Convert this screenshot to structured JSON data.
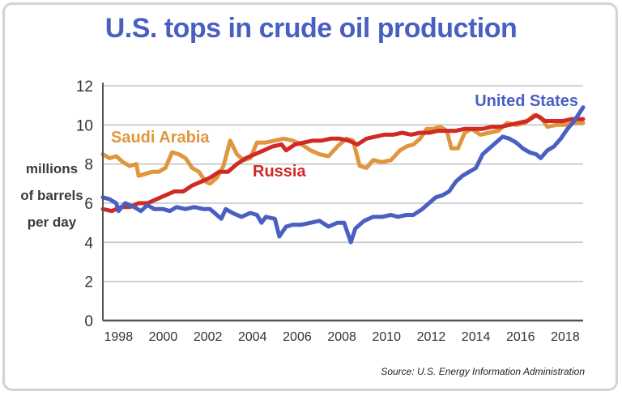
{
  "chart_data": {
    "type": "line",
    "title": "U.S. tops in crude oil production",
    "ylabel_lines": [
      "millions",
      "of barrels",
      "per day"
    ],
    "xlabel": "",
    "source": "Source: U.S. Energy Information Administration",
    "ylim": [
      0,
      12
    ],
    "xlim": [
      1997.3,
      2018.8
    ],
    "y_ticks": [
      0,
      2,
      4,
      6,
      8,
      10,
      12
    ],
    "x_ticks": [
      1998,
      2000,
      2002,
      2004,
      2006,
      2008,
      2010,
      2012,
      2014,
      2016,
      2018
    ],
    "grid": true,
    "series": [
      {
        "name": "Saudi Arabia",
        "color": "#e0963f",
        "points": [
          [
            1997.3,
            8.5
          ],
          [
            1997.6,
            8.3
          ],
          [
            1997.9,
            8.4
          ],
          [
            1998.2,
            8.1
          ],
          [
            1998.5,
            7.9
          ],
          [
            1998.8,
            8.0
          ],
          [
            1998.9,
            7.4
          ],
          [
            1999.2,
            7.5
          ],
          [
            1999.5,
            7.6
          ],
          [
            1999.8,
            7.6
          ],
          [
            2000.1,
            7.8
          ],
          [
            2000.4,
            8.6
          ],
          [
            2000.7,
            8.5
          ],
          [
            2001.0,
            8.3
          ],
          [
            2001.3,
            7.8
          ],
          [
            2001.6,
            7.6
          ],
          [
            2001.9,
            7.1
          ],
          [
            2002.1,
            7.0
          ],
          [
            2002.4,
            7.3
          ],
          [
            2002.7,
            7.9
          ],
          [
            2003.0,
            9.2
          ],
          [
            2003.3,
            8.5
          ],
          [
            2003.6,
            8.2
          ],
          [
            2003.9,
            8.3
          ],
          [
            2004.2,
            9.1
          ],
          [
            2004.6,
            9.1
          ],
          [
            2005.0,
            9.2
          ],
          [
            2005.4,
            9.3
          ],
          [
            2005.8,
            9.2
          ],
          [
            2006.2,
            9.0
          ],
          [
            2006.6,
            8.7
          ],
          [
            2007.0,
            8.5
          ],
          [
            2007.4,
            8.4
          ],
          [
            2007.8,
            8.9
          ],
          [
            2008.2,
            9.3
          ],
          [
            2008.5,
            9.2
          ],
          [
            2008.8,
            7.9
          ],
          [
            2009.1,
            7.8
          ],
          [
            2009.4,
            8.2
          ],
          [
            2009.8,
            8.1
          ],
          [
            2010.2,
            8.2
          ],
          [
            2010.6,
            8.7
          ],
          [
            2010.9,
            8.9
          ],
          [
            2011.2,
            9.0
          ],
          [
            2011.5,
            9.3
          ],
          [
            2011.8,
            9.8
          ],
          [
            2012.1,
            9.8
          ],
          [
            2012.4,
            9.9
          ],
          [
            2012.7,
            9.7
          ],
          [
            2012.9,
            8.8
          ],
          [
            2013.2,
            8.8
          ],
          [
            2013.5,
            9.6
          ],
          [
            2013.8,
            9.8
          ],
          [
            2014.2,
            9.5
          ],
          [
            2014.6,
            9.6
          ],
          [
            2015.0,
            9.7
          ],
          [
            2015.4,
            10.1
          ],
          [
            2015.8,
            10.0
          ],
          [
            2016.2,
            10.1
          ],
          [
            2016.6,
            10.5
          ],
          [
            2016.9,
            10.4
          ],
          [
            2017.2,
            9.9
          ],
          [
            2017.6,
            10.0
          ],
          [
            2018.0,
            10.0
          ],
          [
            2018.4,
            10.1
          ],
          [
            2018.8,
            10.1
          ]
        ]
      },
      {
        "name": "Russia",
        "color": "#cf2a25",
        "points": [
          [
            1997.3,
            5.7
          ],
          [
            1997.7,
            5.6
          ],
          [
            1998.1,
            5.8
          ],
          [
            1998.5,
            5.8
          ],
          [
            1998.9,
            6.0
          ],
          [
            1999.3,
            6.0
          ],
          [
            1999.7,
            6.2
          ],
          [
            2000.1,
            6.4
          ],
          [
            2000.5,
            6.6
          ],
          [
            2000.9,
            6.6
          ],
          [
            2001.3,
            6.9
          ],
          [
            2001.7,
            7.1
          ],
          [
            2002.1,
            7.3
          ],
          [
            2002.5,
            7.6
          ],
          [
            2002.9,
            7.6
          ],
          [
            2003.3,
            8.0
          ],
          [
            2003.7,
            8.3
          ],
          [
            2004.1,
            8.5
          ],
          [
            2004.5,
            8.7
          ],
          [
            2004.9,
            8.9
          ],
          [
            2005.3,
            9.0
          ],
          [
            2005.5,
            8.7
          ],
          [
            2005.9,
            9.0
          ],
          [
            2006.3,
            9.1
          ],
          [
            2006.7,
            9.2
          ],
          [
            2007.1,
            9.2
          ],
          [
            2007.5,
            9.3
          ],
          [
            2007.9,
            9.3
          ],
          [
            2008.3,
            9.2
          ],
          [
            2008.7,
            9.0
          ],
          [
            2009.1,
            9.3
          ],
          [
            2009.5,
            9.4
          ],
          [
            2009.9,
            9.5
          ],
          [
            2010.3,
            9.5
          ],
          [
            2010.7,
            9.6
          ],
          [
            2011.1,
            9.5
          ],
          [
            2011.5,
            9.6
          ],
          [
            2011.9,
            9.6
          ],
          [
            2012.3,
            9.7
          ],
          [
            2012.7,
            9.7
          ],
          [
            2013.1,
            9.7
          ],
          [
            2013.5,
            9.8
          ],
          [
            2013.9,
            9.8
          ],
          [
            2014.3,
            9.8
          ],
          [
            2014.7,
            9.9
          ],
          [
            2015.1,
            9.9
          ],
          [
            2015.5,
            10.0
          ],
          [
            2015.9,
            10.1
          ],
          [
            2016.3,
            10.2
          ],
          [
            2016.7,
            10.5
          ],
          [
            2017.1,
            10.2
          ],
          [
            2017.5,
            10.2
          ],
          [
            2017.9,
            10.2
          ],
          [
            2018.3,
            10.3
          ],
          [
            2018.8,
            10.3
          ]
        ]
      },
      {
        "name": "United States",
        "color": "#4a5fc2",
        "points": [
          [
            1997.3,
            6.3
          ],
          [
            1997.6,
            6.2
          ],
          [
            1997.9,
            6.0
          ],
          [
            1998.0,
            5.6
          ],
          [
            1998.3,
            6.0
          ],
          [
            1998.7,
            5.8
          ],
          [
            1999.0,
            5.6
          ],
          [
            1999.3,
            5.9
          ],
          [
            1999.6,
            5.7
          ],
          [
            2000.0,
            5.7
          ],
          [
            2000.3,
            5.6
          ],
          [
            2000.6,
            5.8
          ],
          [
            2001.0,
            5.7
          ],
          [
            2001.4,
            5.8
          ],
          [
            2001.8,
            5.7
          ],
          [
            2002.1,
            5.7
          ],
          [
            2002.4,
            5.4
          ],
          [
            2002.6,
            5.2
          ],
          [
            2002.8,
            5.7
          ],
          [
            2003.1,
            5.5
          ],
          [
            2003.5,
            5.3
          ],
          [
            2003.9,
            5.5
          ],
          [
            2004.2,
            5.4
          ],
          [
            2004.4,
            5.0
          ],
          [
            2004.6,
            5.3
          ],
          [
            2005.0,
            5.2
          ],
          [
            2005.2,
            4.3
          ],
          [
            2005.5,
            4.8
          ],
          [
            2005.8,
            4.9
          ],
          [
            2006.2,
            4.9
          ],
          [
            2006.6,
            5.0
          ],
          [
            2007.0,
            5.1
          ],
          [
            2007.4,
            4.8
          ],
          [
            2007.8,
            5.0
          ],
          [
            2008.1,
            5.0
          ],
          [
            2008.4,
            4.0
          ],
          [
            2008.6,
            4.7
          ],
          [
            2009.0,
            5.1
          ],
          [
            2009.4,
            5.3
          ],
          [
            2009.8,
            5.3
          ],
          [
            2010.2,
            5.4
          ],
          [
            2010.5,
            5.3
          ],
          [
            2010.9,
            5.4
          ],
          [
            2011.2,
            5.4
          ],
          [
            2011.6,
            5.7
          ],
          [
            2011.9,
            6.0
          ],
          [
            2012.2,
            6.3
          ],
          [
            2012.5,
            6.4
          ],
          [
            2012.8,
            6.6
          ],
          [
            2013.1,
            7.1
          ],
          [
            2013.4,
            7.4
          ],
          [
            2013.7,
            7.6
          ],
          [
            2014.0,
            7.8
          ],
          [
            2014.3,
            8.5
          ],
          [
            2014.6,
            8.8
          ],
          [
            2014.9,
            9.1
          ],
          [
            2015.2,
            9.4
          ],
          [
            2015.5,
            9.3
          ],
          [
            2015.8,
            9.1
          ],
          [
            2016.1,
            8.8
          ],
          [
            2016.4,
            8.6
          ],
          [
            2016.7,
            8.5
          ],
          [
            2016.9,
            8.3
          ],
          [
            2017.2,
            8.7
          ],
          [
            2017.5,
            8.9
          ],
          [
            2017.8,
            9.3
          ],
          [
            2018.1,
            9.8
          ],
          [
            2018.4,
            10.2
          ],
          [
            2018.8,
            10.9
          ]
        ]
      }
    ],
    "annotations": [
      {
        "text": "Saudi Arabia",
        "color": "#e0963f"
      },
      {
        "text": "Russia",
        "color": "#cf2a25"
      },
      {
        "text": "United States",
        "color": "#4a5fc2"
      }
    ]
  }
}
